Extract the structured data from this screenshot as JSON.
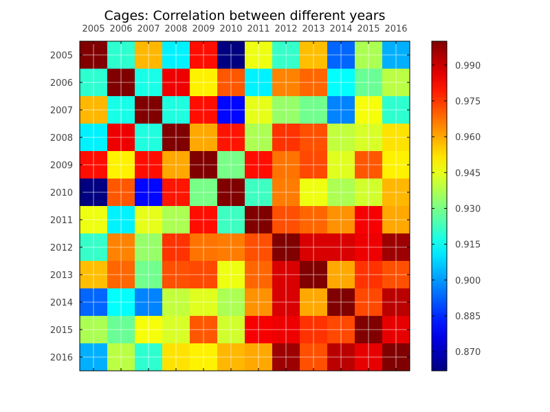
{
  "chart_data": {
    "type": "heatmap",
    "title": "Cages: Correlation between different years",
    "categories": [
      "2005",
      "2006",
      "2007",
      "2008",
      "2009",
      "2010",
      "2011",
      "2012",
      "2013",
      "2014",
      "2015",
      "2016"
    ],
    "colormap": "jet",
    "vmin": 0.862,
    "vmax": 1.0,
    "colorbar_ticks": [
      0.87,
      0.885,
      0.9,
      0.915,
      0.93,
      0.945,
      0.96,
      0.975,
      0.99
    ],
    "colorbar_tick_labels": [
      "0.870",
      "0.885",
      "0.900",
      "0.915",
      "0.930",
      "0.945",
      "0.960",
      "0.975",
      "0.990"
    ],
    "grid": true,
    "values": [
      [
        1.0,
        0.92,
        0.958,
        0.912,
        0.981,
        0.862,
        0.946,
        0.921,
        0.957,
        0.893,
        0.937,
        0.903
      ],
      [
        0.92,
        1.0,
        0.917,
        0.985,
        0.95,
        0.971,
        0.912,
        0.965,
        0.969,
        0.914,
        0.928,
        0.939
      ],
      [
        0.958,
        0.917,
        1.0,
        0.918,
        0.981,
        0.88,
        0.945,
        0.934,
        0.929,
        0.897,
        0.947,
        0.92
      ],
      [
        0.912,
        0.985,
        0.918,
        1.0,
        0.96,
        0.98,
        0.937,
        0.976,
        0.972,
        0.94,
        0.943,
        0.952
      ],
      [
        0.981,
        0.95,
        0.981,
        0.96,
        1.0,
        0.93,
        0.981,
        0.967,
        0.973,
        0.944,
        0.971,
        0.95
      ],
      [
        0.862,
        0.971,
        0.88,
        0.98,
        0.93,
        1.0,
        0.922,
        0.966,
        0.946,
        0.937,
        0.942,
        0.958
      ],
      [
        0.946,
        0.912,
        0.945,
        0.937,
        0.981,
        0.922,
        1.0,
        0.972,
        0.969,
        0.963,
        0.984,
        0.96
      ],
      [
        0.921,
        0.965,
        0.934,
        0.976,
        0.967,
        0.966,
        0.972,
        1.0,
        0.988,
        0.988,
        0.985,
        0.996
      ],
      [
        0.957,
        0.969,
        0.929,
        0.972,
        0.973,
        0.946,
        0.969,
        0.988,
        1.0,
        0.96,
        0.976,
        0.972
      ],
      [
        0.893,
        0.914,
        0.897,
        0.94,
        0.944,
        0.937,
        0.963,
        0.988,
        0.96,
        1.0,
        0.973,
        0.992
      ],
      [
        0.937,
        0.928,
        0.947,
        0.943,
        0.971,
        0.942,
        0.984,
        0.985,
        0.976,
        0.973,
        1.0,
        0.986
      ],
      [
        0.903,
        0.939,
        0.92,
        0.952,
        0.95,
        0.958,
        0.96,
        0.996,
        0.972,
        0.992,
        0.986,
        1.0
      ]
    ]
  }
}
